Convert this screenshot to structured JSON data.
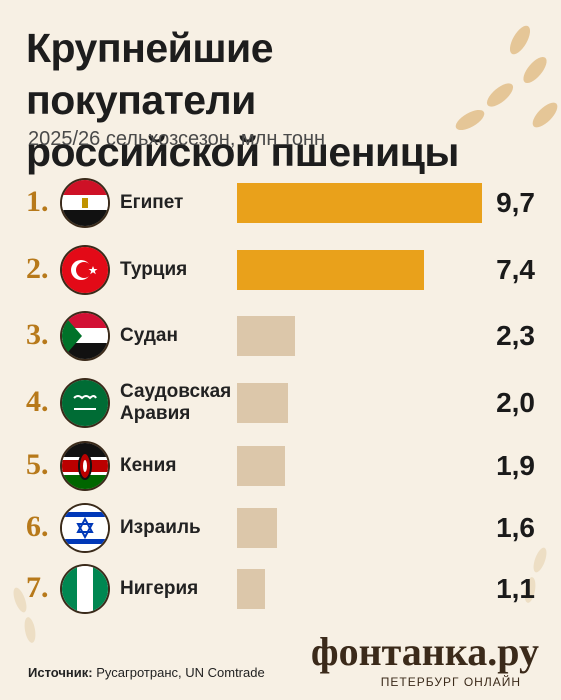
{
  "chart_data": {
    "type": "bar",
    "title": "Крупнейшие покупатели российской пшеницы",
    "subtitle": "2025/26 сельхозсезон, млн тонн",
    "ranks": [
      "1.",
      "2.",
      "3.",
      "4.",
      "5.",
      "6.",
      "7."
    ],
    "categories": [
      "Египет",
      "Турция",
      "Судан",
      "Саудовская Аравия",
      "Кения",
      "Израиль",
      "Нигерия"
    ],
    "values": [
      9.7,
      7.4,
      2.3,
      2.0,
      1.9,
      1.6,
      1.1
    ],
    "value_labels": [
      "9,7",
      "7,4",
      "2,3",
      "2,0",
      "1,9",
      "1,6",
      "1,1"
    ],
    "colors": [
      "#e9a11b",
      "#e9a11b",
      "#dcc7aa",
      "#dcc7aa",
      "#dcc7aa",
      "#dcc7aa",
      "#dcc7aa"
    ],
    "source_label": "Источник:",
    "source": "Русагротранс, UN Comtrade"
  },
  "logo": {
    "name": "фонтанка.ру",
    "tagline": "ПЕТЕРБУРГ ОНЛАЙН"
  }
}
